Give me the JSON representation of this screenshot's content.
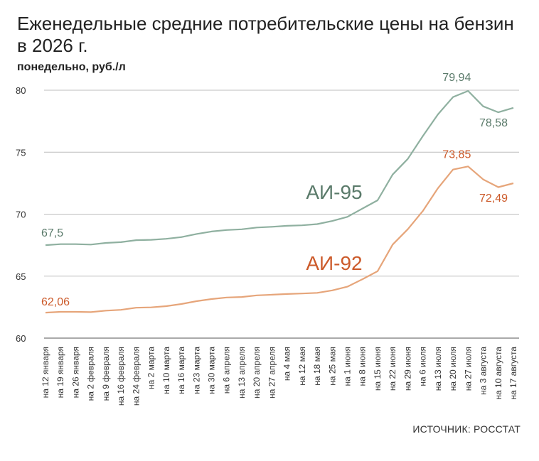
{
  "header": {
    "title": "Еженедельные средние потребительские цены на бензин в 2026 г.",
    "subtitle": "понедельно, руб./л"
  },
  "footer": {
    "source": "ИСТОЧНИК: РОССТАТ"
  },
  "colors": {
    "ai95": "#8fb0a0",
    "ai95_text": "#5a7a6a",
    "ai92": "#e6a57a",
    "ai92_text": "#cc5a2a",
    "grid": "#bdbdbd"
  },
  "chart_data": {
    "type": "line",
    "ylim": [
      60,
      80
    ],
    "yticks": [
      60,
      65,
      70,
      75,
      80
    ],
    "grid": true,
    "categories": [
      "на 12 января",
      "на 19 января",
      "на 26 января",
      "на 2 февраля",
      "на 9 февраля",
      "на 16 февраля",
      "на 24 февраля",
      "на 2 марта",
      "на 10 марта",
      "на 16 марта",
      "на 23 марта",
      "на 30 марта",
      "на 6 апреля",
      "на 13 апреля",
      "на 20 апреля",
      "на 27 апреля",
      "на 4 мая",
      "на 12 мая",
      "на 18 мая",
      "на 25 мая",
      "на 1 июня",
      "на 8 июня",
      "на 15 июня",
      "на 22 июня",
      "на 29 июня",
      "на 6 июля",
      "на 13 июля",
      "на 20 июля",
      "на 27 июля",
      "на 3 августа",
      "на 10 августа",
      "на 17 августа"
    ],
    "series": [
      {
        "name": "АИ-95",
        "values": [
          67.5,
          67.58,
          67.58,
          67.55,
          67.68,
          67.74,
          67.9,
          67.93,
          68.01,
          68.15,
          68.4,
          68.6,
          68.72,
          68.78,
          68.92,
          68.98,
          69.06,
          69.1,
          69.2,
          69.45,
          69.78,
          70.45,
          71.12,
          73.2,
          74.45,
          76.3,
          78.05,
          79.45,
          79.94,
          78.7,
          78.22,
          78.58
        ],
        "start_label": "67,5",
        "peak_label": "79,94",
        "end_label": "78,58"
      },
      {
        "name": "АИ-92",
        "values": [
          62.06,
          62.12,
          62.12,
          62.1,
          62.22,
          62.28,
          62.45,
          62.48,
          62.58,
          62.75,
          62.98,
          63.15,
          63.28,
          63.32,
          63.45,
          63.5,
          63.56,
          63.6,
          63.65,
          63.85,
          64.15,
          64.75,
          65.4,
          67.55,
          68.78,
          70.25,
          72.1,
          73.6,
          73.85,
          72.8,
          72.18,
          72.49
        ],
        "start_label": "62,06",
        "peak_label": "73,85",
        "end_label": "72,49"
      }
    ]
  }
}
